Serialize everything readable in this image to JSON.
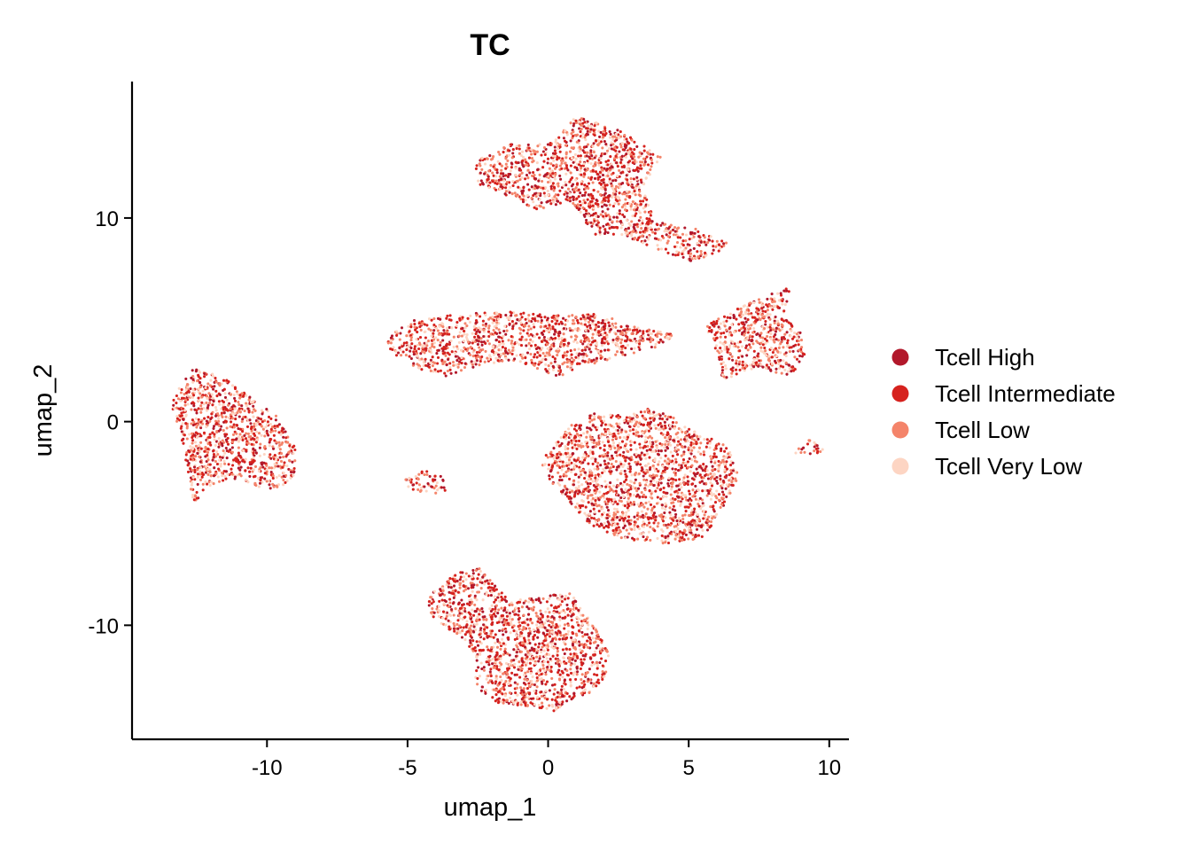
{
  "chart_data": {
    "type": "scatter",
    "title": "TC",
    "xlabel": "umap_1",
    "ylabel": "umap_2",
    "xlim": [
      -14.8,
      10.7
    ],
    "ylim": [
      -15.6,
      16.7
    ],
    "xticks": [
      -10,
      -5,
      0,
      5,
      10
    ],
    "yticks": [
      -10,
      0,
      10
    ],
    "grid": false,
    "legend_position": "right",
    "series": [
      {
        "name": "Tcell High",
        "color": "#B2182B"
      },
      {
        "name": "Tcell Intermediate",
        "color": "#D6221E"
      },
      {
        "name": "Tcell Low",
        "color": "#F4846A"
      },
      {
        "name": "Tcell Very Low",
        "color": "#FDD5C3"
      }
    ],
    "clusters": [
      {
        "x": [
          -13.2,
          -12.6,
          -11.6,
          -10.6,
          -9.6,
          -9.0,
          -9.0,
          -9.6,
          -10.4,
          -11.2,
          -12.2,
          -12.6,
          -13.0,
          -13.4
        ],
        "y": [
          1.6,
          2.6,
          2.2,
          1.2,
          0.2,
          -1.0,
          -2.6,
          -3.4,
          -3.2,
          -2.8,
          -3.2,
          -4.2,
          -1.0,
          0.8
        ],
        "density": 1.0
      },
      {
        "x": [
          -5.2,
          -4.4,
          -3.8,
          -3.6,
          -4.2,
          -5.0
        ],
        "y": [
          -2.9,
          -2.4,
          -2.6,
          -3.4,
          -3.6,
          -3.4
        ],
        "density": 0.8
      },
      {
        "x": [
          -5.9,
          -4.8,
          -3.0,
          -1.0,
          0.5,
          1.8,
          3.2,
          4.6,
          3.8,
          2.0,
          1.0,
          0.4,
          -1.2,
          -2.4,
          -3.6,
          -4.6,
          -5.6
        ],
        "y": [
          4.1,
          5.0,
          5.3,
          5.4,
          5.2,
          5.3,
          4.6,
          4.3,
          3.6,
          3.0,
          2.6,
          2.2,
          3.0,
          2.8,
          2.2,
          2.6,
          3.4
        ],
        "density": 1.0
      },
      {
        "x": [
          -2.6,
          -1.4,
          0.2,
          1.0,
          2.4,
          3.6,
          4.0,
          3.4,
          3.8,
          5.0,
          6.4,
          6.2,
          5.2,
          4.0,
          2.6,
          1.6,
          0.8,
          -0.4,
          -1.6,
          -2.6
        ],
        "y": [
          12.8,
          13.6,
          13.8,
          15.0,
          14.4,
          13.4,
          13.0,
          11.6,
          9.8,
          9.6,
          8.8,
          8.4,
          7.8,
          8.4,
          9.2,
          9.2,
          10.8,
          10.4,
          11.2,
          11.6
        ],
        "density": 1.0
      },
      {
        "x": [
          5.5,
          6.5,
          7.8,
          8.6,
          8.4,
          9.0,
          9.2,
          8.6,
          7.4,
          6.2,
          6.1,
          5.8
        ],
        "y": [
          4.6,
          5.4,
          6.2,
          6.6,
          5.2,
          4.4,
          3.2,
          2.2,
          2.6,
          2.0,
          3.0,
          4.2
        ],
        "density": 1.0
      },
      {
        "x": [
          -0.2,
          0.8,
          1.6,
          2.8,
          3.6,
          4.6,
          5.4,
          6.4,
          6.8,
          6.0,
          5.4,
          4.2,
          2.8,
          1.6,
          0.8,
          0.0,
          -0.2
        ],
        "y": [
          -1.8,
          -0.2,
          0.4,
          0.3,
          0.7,
          0.1,
          -0.6,
          -1.2,
          -2.8,
          -4.8,
          -5.8,
          -6.0,
          -5.8,
          -5.2,
          -4.0,
          -2.8,
          -2.2
        ],
        "density": 1.0
      },
      {
        "x": [
          8.8,
          9.4,
          9.8,
          9.2,
          8.6
        ],
        "y": [
          -1.3,
          -0.8,
          -1.4,
          -1.8,
          -1.6
        ],
        "density": 0.7
      },
      {
        "x": [
          -4.2,
          -3.2,
          -2.4,
          -1.4,
          -0.4,
          0.8,
          1.6,
          2.2,
          2.0,
          1.4,
          0.2,
          -0.8,
          -1.8,
          -2.6,
          -2.6,
          -3.4,
          -4.0,
          -4.4
        ],
        "y": [
          -8.4,
          -7.4,
          -7.2,
          -8.8,
          -8.6,
          -8.4,
          -10.0,
          -11.2,
          -12.8,
          -13.4,
          -14.2,
          -14.0,
          -13.8,
          -13.0,
          -11.4,
          -10.4,
          -9.8,
          -9.0
        ],
        "density": 1.0
      }
    ]
  }
}
